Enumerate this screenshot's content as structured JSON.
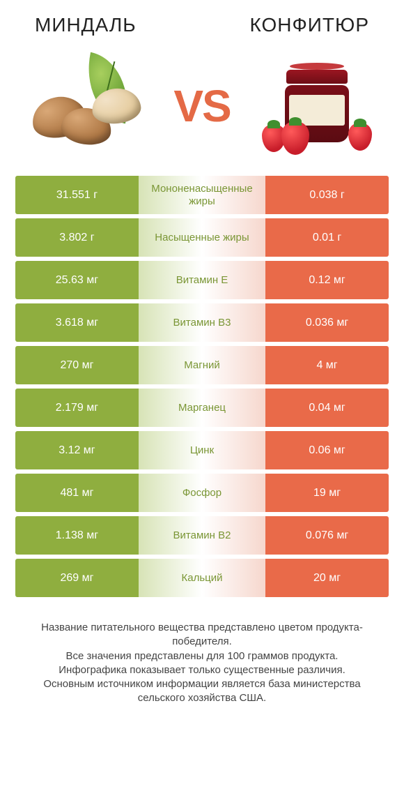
{
  "header": {
    "left_title": "Миндаль",
    "right_title": "Конфитюр",
    "vs_label": "VS"
  },
  "colors": {
    "left_winner": "#8fae3f",
    "left_loser": "#c9d99a",
    "right_winner": "#e96a49",
    "right_loser": "#f2b8a8",
    "mid_fade_left": "#d7e3b6",
    "mid_fade_right": "#f6d7cd",
    "nutrient_text_left": "#7a9635",
    "nutrient_text_right": "#d05a3c",
    "vs_color": "#e46a46"
  },
  "rows": [
    {
      "nutrient": "Мононенасыщенные жиры",
      "left": "31.551 г",
      "right": "0.038 г",
      "winner": "left"
    },
    {
      "nutrient": "Насыщенные жиры",
      "left": "3.802 г",
      "right": "0.01 г",
      "winner": "left"
    },
    {
      "nutrient": "Витамин E",
      "left": "25.63 мг",
      "right": "0.12 мг",
      "winner": "left"
    },
    {
      "nutrient": "Витамин B3",
      "left": "3.618 мг",
      "right": "0.036 мг",
      "winner": "left"
    },
    {
      "nutrient": "Магний",
      "left": "270 мг",
      "right": "4 мг",
      "winner": "left"
    },
    {
      "nutrient": "Марганец",
      "left": "2.179 мг",
      "right": "0.04 мг",
      "winner": "left"
    },
    {
      "nutrient": "Цинк",
      "left": "3.12 мг",
      "right": "0.06 мг",
      "winner": "left"
    },
    {
      "nutrient": "Фосфор",
      "left": "481 мг",
      "right": "19 мг",
      "winner": "left"
    },
    {
      "nutrient": "Витамин B2",
      "left": "1.138 мг",
      "right": "0.076 мг",
      "winner": "left"
    },
    {
      "nutrient": "Кальций",
      "left": "269 мг",
      "right": "20 мг",
      "winner": "left"
    }
  ],
  "footnote": "Название питательного вещества представлено цветом продукта-победителя.\nВсе значения представлены для 100 граммов продукта.\nИнфографика показывает только существенные различия.\nОсновным источником информации является база министерства сельского хозяйства США."
}
